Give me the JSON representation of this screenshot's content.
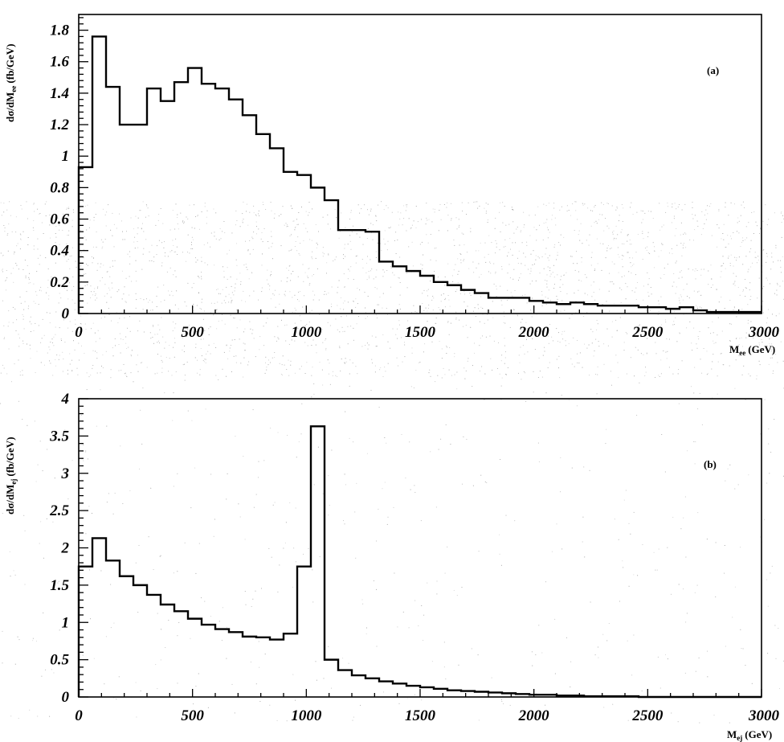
{
  "chart_data": [
    {
      "type": "histogram",
      "panel_label": "(a)",
      "xlabel": "M",
      "xlabel_sub": "ee",
      "xlabel_unit": "(GeV)",
      "ylabel": "dσ/dM",
      "ylabel_sub": "ee",
      "ylabel_unit": "(fb/GeV)",
      "xlim": [
        0,
        3000
      ],
      "ylim": [
        0,
        1.9
      ],
      "x_ticks": [
        "0",
        "500",
        "1000",
        "1500",
        "2000",
        "2500",
        "3000"
      ],
      "y_ticks": [
        "0",
        "0.2",
        "0.4",
        "0.6",
        "0.8",
        "1",
        "1.2",
        "1.4",
        "1.6",
        "1.8"
      ],
      "bin_width": 60,
      "bin_start": 0,
      "values": [
        0.93,
        1.76,
        1.44,
        1.2,
        1.2,
        1.43,
        1.35,
        1.47,
        1.56,
        1.46,
        1.43,
        1.36,
        1.26,
        1.14,
        1.05,
        0.9,
        0.88,
        0.8,
        0.72,
        0.53,
        0.53,
        0.52,
        0.33,
        0.3,
        0.27,
        0.24,
        0.2,
        0.18,
        0.15,
        0.13,
        0.1,
        0.1,
        0.1,
        0.08,
        0.07,
        0.06,
        0.07,
        0.06,
        0.05,
        0.05,
        0.05,
        0.04,
        0.04,
        0.03,
        0.04,
        0.02,
        0.01,
        0.01,
        0.01,
        0.01
      ]
    },
    {
      "type": "histogram",
      "panel_label": "(b)",
      "xlabel": "M",
      "xlabel_sub": "ej",
      "xlabel_unit": "(GeV)",
      "ylabel": "dσ/dM",
      "ylabel_sub": "ej",
      "ylabel_unit": "(fb/GeV)",
      "xlim": [
        0,
        3000
      ],
      "ylim": [
        0,
        4
      ],
      "x_ticks": [
        "0",
        "500",
        "1000",
        "1500",
        "2000",
        "2500",
        "3000"
      ],
      "y_ticks": [
        "0",
        "0.5",
        "1",
        "1.5",
        "2",
        "2.5",
        "3",
        "3.5",
        "4"
      ],
      "bin_width": 60,
      "bin_start": 0,
      "values": [
        1.75,
        2.13,
        1.83,
        1.62,
        1.5,
        1.37,
        1.24,
        1.15,
        1.05,
        0.97,
        0.91,
        0.87,
        0.81,
        0.8,
        0.77,
        0.85,
        1.75,
        3.63,
        0.5,
        0.36,
        0.29,
        0.25,
        0.21,
        0.18,
        0.15,
        0.13,
        0.11,
        0.09,
        0.08,
        0.07,
        0.06,
        0.05,
        0.04,
        0.03,
        0.03,
        0.02,
        0.02,
        0.01,
        0.01,
        0.01,
        0.01,
        0.0,
        0.0,
        0.0,
        0.0,
        0.0,
        0.0,
        0.0,
        0.0,
        0.0
      ]
    }
  ]
}
